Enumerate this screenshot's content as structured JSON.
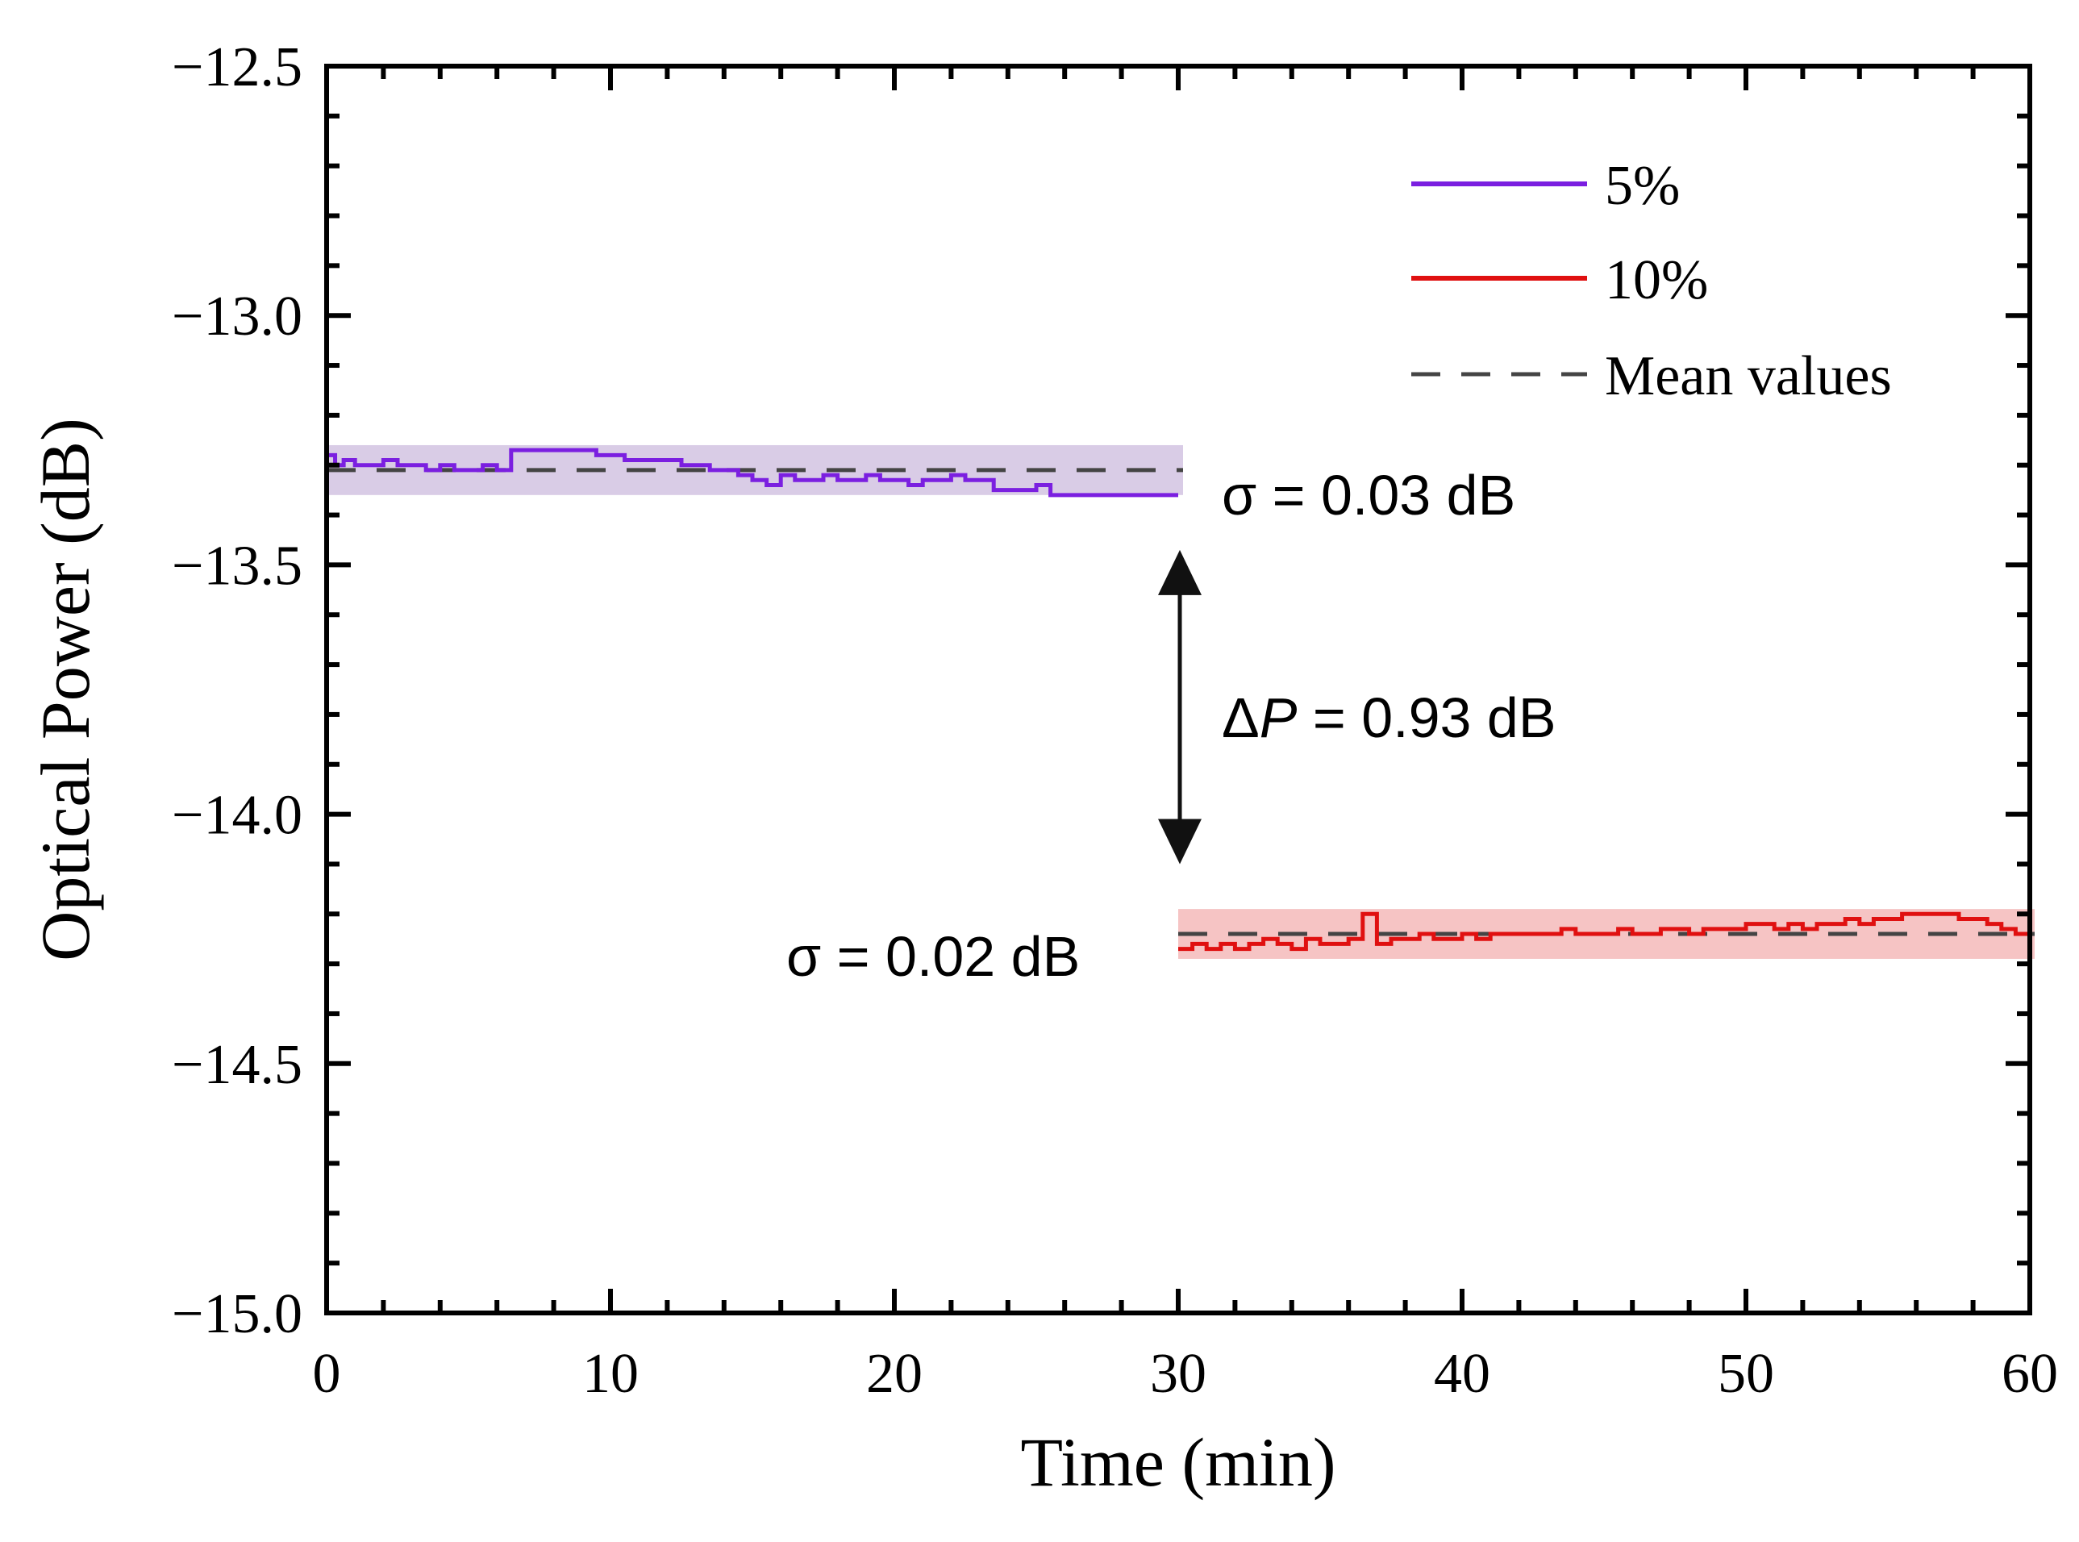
{
  "chart_data": {
    "type": "line",
    "title": "",
    "xlabel": "Time (min)",
    "ylabel": "Optical Power (dB)",
    "xlim": [
      0,
      60
    ],
    "ylim": [
      -15.0,
      -12.5
    ],
    "x_ticks": [
      0,
      10,
      20,
      30,
      40,
      50,
      60
    ],
    "x_tick_labels": [
      "0",
      "10",
      "20",
      "30",
      "40",
      "50",
      "60"
    ],
    "y_ticks": [
      -15.0,
      -14.5,
      -14.0,
      -13.5,
      -13.0,
      -12.5
    ],
    "y_tick_labels": [
      "−15.0",
      "−14.5",
      "−14.0",
      "−13.5",
      "−13.0",
      "−12.5"
    ],
    "legend": {
      "position": "top-right",
      "entries": [
        {
          "label": "5%",
          "color": "#7B1FE0",
          "style": "solid"
        },
        {
          "label": "10%",
          "color": "#E01010",
          "style": "solid"
        },
        {
          "label": "Mean values",
          "color": "#444444",
          "style": "dashed"
        }
      ]
    },
    "series": [
      {
        "name": "5%",
        "color": "#7B1FE0",
        "band_color": "#D9CCE6",
        "mean": -13.31,
        "band": [
          -13.36,
          -13.26
        ],
        "x": [
          0,
          0.3,
          0.6,
          1.0,
          1.5,
          2.0,
          2.5,
          3.0,
          3.5,
          4.0,
          4.5,
          5.0,
          5.5,
          6.0,
          6.5,
          7.0,
          7.5,
          8.0,
          8.5,
          9.0,
          9.5,
          10.0,
          10.5,
          11.0,
          11.5,
          12.0,
          12.5,
          13.0,
          13.5,
          14.0,
          14.5,
          15.0,
          15.5,
          16.0,
          16.5,
          17.0,
          17.5,
          18.0,
          18.5,
          19.0,
          19.5,
          20.0,
          20.5,
          21.0,
          21.5,
          22.0,
          22.5,
          23.0,
          23.5,
          24.0,
          24.5,
          25.0,
          25.5,
          26.0,
          26.5,
          27.0,
          27.5,
          28.0,
          28.5,
          29.0,
          29.5,
          30.0
        ],
        "values": [
          -13.28,
          -13.3,
          -13.29,
          -13.3,
          -13.3,
          -13.29,
          -13.3,
          -13.3,
          -13.31,
          -13.3,
          -13.31,
          -13.31,
          -13.3,
          -13.31,
          -13.27,
          -13.27,
          -13.27,
          -13.27,
          -13.27,
          -13.27,
          -13.28,
          -13.28,
          -13.29,
          -13.29,
          -13.29,
          -13.29,
          -13.3,
          -13.3,
          -13.31,
          -13.31,
          -13.32,
          -13.33,
          -13.34,
          -13.32,
          -13.33,
          -13.33,
          -13.32,
          -13.33,
          -13.33,
          -13.32,
          -13.33,
          -13.33,
          -13.34,
          -13.33,
          -13.33,
          -13.32,
          -13.33,
          -13.33,
          -13.35,
          -13.35,
          -13.35,
          -13.34,
          -13.36,
          -13.36,
          -13.36,
          -13.36,
          -13.36,
          -13.36,
          -13.36,
          -13.36,
          -13.36,
          -13.36
        ]
      },
      {
        "name": "10%",
        "color": "#E01010",
        "band_color": "#F6C4C4",
        "mean": -14.24,
        "band": [
          -14.29,
          -14.19
        ],
        "x": [
          30.0,
          30.5,
          31.0,
          31.5,
          32.0,
          32.5,
          33.0,
          33.5,
          34.0,
          34.5,
          35.0,
          35.5,
          36.0,
          36.5,
          37.0,
          37.5,
          38.0,
          38.5,
          39.0,
          39.5,
          40.0,
          40.5,
          41.0,
          41.5,
          42.0,
          42.5,
          43.0,
          43.5,
          44.0,
          44.5,
          45.0,
          45.5,
          46.0,
          46.5,
          47.0,
          47.5,
          48.0,
          48.5,
          49.0,
          49.5,
          50.0,
          50.5,
          51.0,
          51.5,
          52.0,
          52.5,
          53.0,
          53.5,
          54.0,
          54.5,
          55.0,
          55.5,
          56.0,
          56.5,
          57.0,
          57.5,
          58.0,
          58.5,
          59.0,
          59.5,
          60.0
        ],
        "values": [
          -14.27,
          -14.26,
          -14.27,
          -14.26,
          -14.27,
          -14.26,
          -14.25,
          -14.26,
          -14.27,
          -14.25,
          -14.26,
          -14.26,
          -14.25,
          -14.2,
          -14.26,
          -14.25,
          -14.25,
          -14.24,
          -14.25,
          -14.25,
          -14.24,
          -14.25,
          -14.24,
          -14.24,
          -14.24,
          -14.24,
          -14.24,
          -14.23,
          -14.24,
          -14.24,
          -14.24,
          -14.23,
          -14.24,
          -14.24,
          -14.23,
          -14.23,
          -14.24,
          -14.23,
          -14.23,
          -14.23,
          -14.22,
          -14.22,
          -14.23,
          -14.22,
          -14.23,
          -14.22,
          -14.22,
          -14.21,
          -14.22,
          -14.21,
          -14.21,
          -14.2,
          -14.2,
          -14.2,
          -14.2,
          -14.21,
          -14.21,
          -14.22,
          -14.23,
          -14.24,
          -14.25
        ]
      }
    ],
    "annotations": [
      {
        "id": "sigma-5",
        "text": "σ = 0.03 dB"
      },
      {
        "id": "sigma-10",
        "text": "σ = 0.02 dB"
      },
      {
        "id": "delta-p",
        "prefix": "Δ",
        "italic": "P",
        "suffix": " = 0.93 dB",
        "arrow_x": 30,
        "arrow_from": -13.47,
        "arrow_to": -14.1
      }
    ]
  }
}
